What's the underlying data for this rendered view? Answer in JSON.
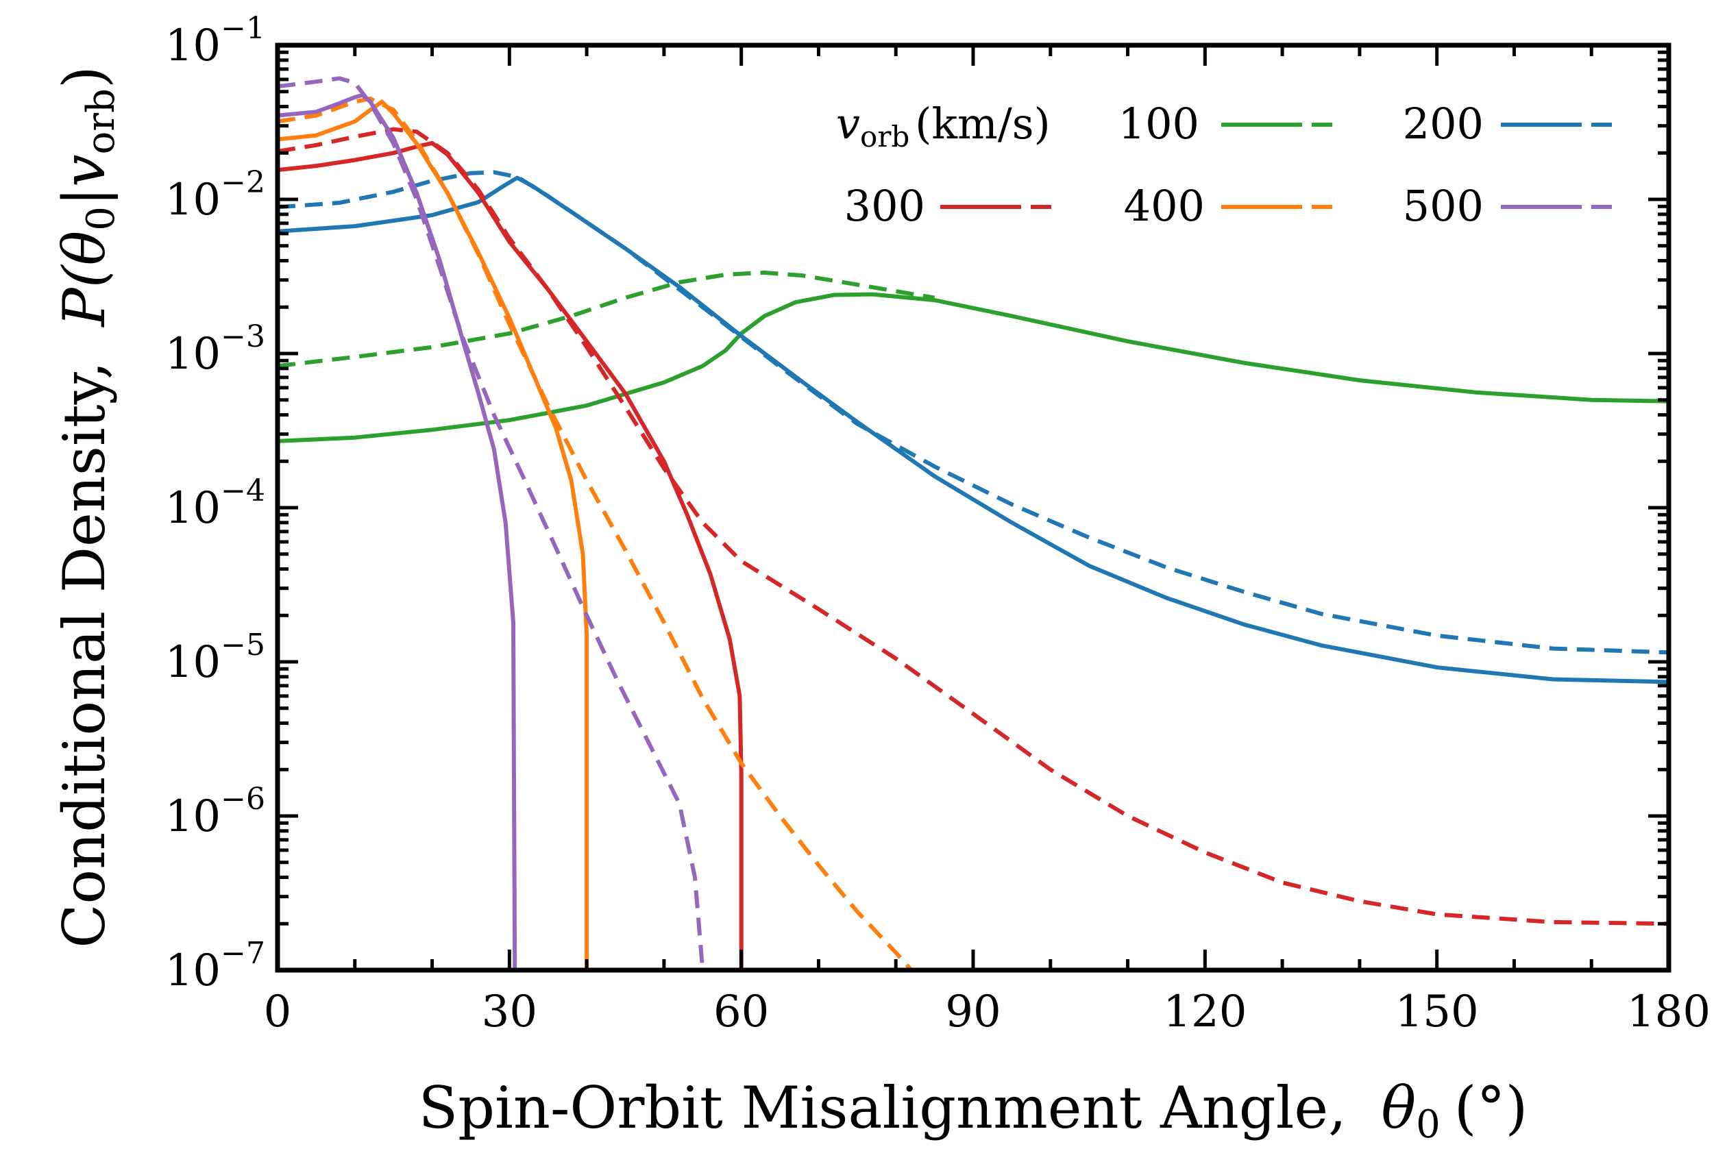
{
  "chart_data": {
    "type": "line",
    "xlabel": "Spin-Orbit Misalignment Angle,",
    "xlabel_symbol": "θ",
    "xlabel_sub": "0",
    "xlabel_unit": "(°)",
    "ylabel": "Conditional Density,",
    "ylabel_symbol": "P(θ",
    "ylabel_sub": "0",
    "ylabel_mid": "|v",
    "ylabel_sub2": "orb",
    "ylabel_end": ")",
    "xlim": [
      0,
      180
    ],
    "ylim": [
      1e-07,
      0.1
    ],
    "yscale": "log",
    "xticks": [
      0,
      30,
      60,
      90,
      120,
      150,
      180
    ],
    "xtick_labels": [
      "0",
      "30",
      "60",
      "90",
      "120",
      "150",
      "180"
    ],
    "ytick_exponents": [
      "−1",
      "−2",
      "−3",
      "−4",
      "−5",
      "−6",
      "−7"
    ],
    "ytick_values": [
      0.1,
      0.01,
      0.001,
      0.0001,
      1e-05,
      1e-06,
      1e-07
    ],
    "ytick_base": "10",
    "legend": {
      "position": "top-right",
      "title_symbol": "v",
      "title_sub": "orb",
      "title_unit": "(km/s)",
      "entries": [
        "100",
        "200",
        "300",
        "400",
        "500"
      ]
    },
    "series": [
      {
        "name": "100",
        "color": "#2ca02c",
        "solid": [
          [
            0,
            0.00027
          ],
          [
            10,
            0.000285
          ],
          [
            20,
            0.00032
          ],
          [
            30,
            0.00037
          ],
          [
            40,
            0.00046
          ],
          [
            50,
            0.00065
          ],
          [
            55,
            0.00083
          ],
          [
            58,
            0.00105
          ],
          [
            60,
            0.00135
          ],
          [
            63,
            0.00175
          ],
          [
            67,
            0.00215
          ],
          [
            72,
            0.0024
          ],
          [
            77,
            0.00242
          ],
          [
            85,
            0.00222
          ],
          [
            95,
            0.00175
          ],
          [
            110,
            0.0012
          ],
          [
            125,
            0.00087
          ],
          [
            140,
            0.00067
          ],
          [
            155,
            0.00056
          ],
          [
            170,
            0.0005
          ],
          [
            180,
            0.00049
          ]
        ],
        "dashed": [
          [
            0,
            0.00083
          ],
          [
            10,
            0.00095
          ],
          [
            20,
            0.0011
          ],
          [
            30,
            0.00135
          ],
          [
            38,
            0.00175
          ],
          [
            45,
            0.0023
          ],
          [
            52,
            0.0029
          ],
          [
            58,
            0.00325
          ],
          [
            63,
            0.00335
          ],
          [
            68,
            0.0032
          ],
          [
            75,
            0.0028
          ],
          [
            85,
            0.0023
          ]
        ]
      },
      {
        "name": "200",
        "color": "#1f77b4",
        "solid": [
          [
            0,
            0.0062
          ],
          [
            10,
            0.0067
          ],
          [
            20,
            0.0079
          ],
          [
            26,
            0.0096
          ],
          [
            29,
            0.012
          ],
          [
            31,
            0.0138
          ],
          [
            33,
            0.0122
          ],
          [
            38,
            0.0083
          ],
          [
            45,
            0.0048
          ],
          [
            52,
            0.0027
          ],
          [
            60,
            0.0013
          ],
          [
            68,
            0.00065
          ],
          [
            75,
            0.00036
          ],
          [
            85,
            0.00016
          ],
          [
            95,
            8e-05
          ],
          [
            105,
            4.2e-05
          ],
          [
            115,
            2.6e-05
          ],
          [
            125,
            1.75e-05
          ],
          [
            135,
            1.28e-05
          ],
          [
            150,
            9.2e-06
          ],
          [
            165,
            7.7e-06
          ],
          [
            180,
            7.4e-06
          ]
        ],
        "dashed": [
          [
            0,
            0.0089
          ],
          [
            8,
            0.0095
          ],
          [
            15,
            0.0112
          ],
          [
            20,
            0.0132
          ],
          [
            25,
            0.0148
          ],
          [
            28,
            0.015
          ],
          [
            31,
            0.014
          ],
          [
            35,
            0.0105
          ],
          [
            45,
            0.0048
          ],
          [
            55,
            0.002
          ],
          [
            65,
            0.00082
          ],
          [
            75,
            0.00035
          ],
          [
            85,
            0.000185
          ],
          [
            95,
            0.000105
          ],
          [
            105,
            6.4e-05
          ],
          [
            115,
            4.1e-05
          ],
          [
            125,
            2.85e-05
          ],
          [
            135,
            2.05e-05
          ],
          [
            150,
            1.48e-05
          ],
          [
            165,
            1.22e-05
          ],
          [
            180,
            1.15e-05
          ]
        ]
      },
      {
        "name": "300",
        "color": "#d62728",
        "solid": [
          [
            0,
            0.0155
          ],
          [
            5,
            0.0165
          ],
          [
            10,
            0.018
          ],
          [
            15,
            0.02
          ],
          [
            18,
            0.022
          ],
          [
            20,
            0.0232
          ],
          [
            22,
            0.0195
          ],
          [
            26,
            0.011
          ],
          [
            30,
            0.0053
          ],
          [
            35,
            0.0026
          ],
          [
            40,
            0.0012
          ],
          [
            45,
            0.00055
          ],
          [
            50,
            0.0002
          ],
          [
            53,
            9e-05
          ],
          [
            56,
            3.7e-05
          ],
          [
            58.5,
            1.4e-05
          ],
          [
            59.8,
            6e-06
          ],
          [
            60,
            1.9e-06
          ],
          [
            60,
            1e-07
          ]
        ],
        "dashed": [
          [
            0,
            0.0205
          ],
          [
            5,
            0.0225
          ],
          [
            10,
            0.0255
          ],
          [
            15,
            0.0285
          ],
          [
            18,
            0.0275
          ],
          [
            22,
            0.02
          ],
          [
            26,
            0.0115
          ],
          [
            30,
            0.0056
          ],
          [
            35,
            0.0026
          ],
          [
            40,
            0.0011
          ],
          [
            45,
            0.00045
          ],
          [
            50,
            0.00018
          ],
          [
            55,
            8e-05
          ],
          [
            60,
            4.5e-05
          ],
          [
            70,
            2.2e-05
          ],
          [
            80,
            1.05e-05
          ],
          [
            90,
            4.6e-06
          ],
          [
            100,
            2e-06
          ],
          [
            110,
            1e-06
          ],
          [
            120,
            5.8e-07
          ],
          [
            130,
            3.7e-07
          ],
          [
            140,
            2.8e-07
          ],
          [
            150,
            2.3e-07
          ],
          [
            165,
            2.05e-07
          ],
          [
            180,
            2e-07
          ]
        ]
      },
      {
        "name": "400",
        "color": "#ff7f0e",
        "solid": [
          [
            0,
            0.0245
          ],
          [
            5,
            0.026
          ],
          [
            10,
            0.032
          ],
          [
            12,
            0.038
          ],
          [
            13.5,
            0.043
          ],
          [
            15,
            0.036
          ],
          [
            18,
            0.023
          ],
          [
            22,
            0.011
          ],
          [
            26,
            0.0045
          ],
          [
            30,
            0.0017
          ],
          [
            33,
            0.00075
          ],
          [
            36,
            0.00033
          ],
          [
            38,
            0.00015
          ],
          [
            39.5,
            5e-05
          ],
          [
            40,
            1.5e-05
          ],
          [
            40,
            1e-07
          ]
        ],
        "dashed": [
          [
            0,
            0.032
          ],
          [
            5,
            0.035
          ],
          [
            10,
            0.043
          ],
          [
            12,
            0.045
          ],
          [
            15,
            0.038
          ],
          [
            18,
            0.024
          ],
          [
            22,
            0.011
          ],
          [
            26,
            0.0044
          ],
          [
            30,
            0.00155
          ],
          [
            35,
            0.00046
          ],
          [
            40,
            0.00015
          ],
          [
            45,
            5.3e-05
          ],
          [
            50,
            1.8e-05
          ],
          [
            55,
            5.8e-06
          ],
          [
            60,
            2.2e-06
          ],
          [
            65,
            1e-06
          ],
          [
            70,
            4.8e-07
          ],
          [
            75,
            2.4e-07
          ],
          [
            80,
            1.3e-07
          ],
          [
            82,
            1e-07
          ]
        ]
      },
      {
        "name": "500",
        "color": "#9467bd",
        "solid": [
          [
            0,
            0.035
          ],
          [
            5,
            0.037
          ],
          [
            8,
            0.042
          ],
          [
            10,
            0.046
          ],
          [
            11,
            0.0475
          ],
          [
            12,
            0.043
          ],
          [
            15,
            0.025
          ],
          [
            18,
            0.011
          ],
          [
            21,
            0.004
          ],
          [
            24,
            0.0012
          ],
          [
            26,
            0.00055
          ],
          [
            28,
            0.00024
          ],
          [
            29.5,
            8e-05
          ],
          [
            30.5,
            1.8e-05
          ],
          [
            30.7,
            1e-07
          ]
        ],
        "dashed": [
          [
            0,
            0.054
          ],
          [
            5,
            0.058
          ],
          [
            8,
            0.061
          ],
          [
            10,
            0.057
          ],
          [
            12,
            0.042
          ],
          [
            15,
            0.023
          ],
          [
            18,
            0.01
          ],
          [
            21,
            0.0036
          ],
          [
            24,
            0.00125
          ],
          [
            28,
            0.0004
          ],
          [
            32,
            0.00015
          ],
          [
            36,
            5.5e-05
          ],
          [
            40,
            2e-05
          ],
          [
            44,
            7.5e-06
          ],
          [
            48,
            3e-06
          ],
          [
            52,
            1.2e-06
          ],
          [
            54,
            4e-07
          ],
          [
            55,
            1e-07
          ]
        ]
      }
    ]
  }
}
